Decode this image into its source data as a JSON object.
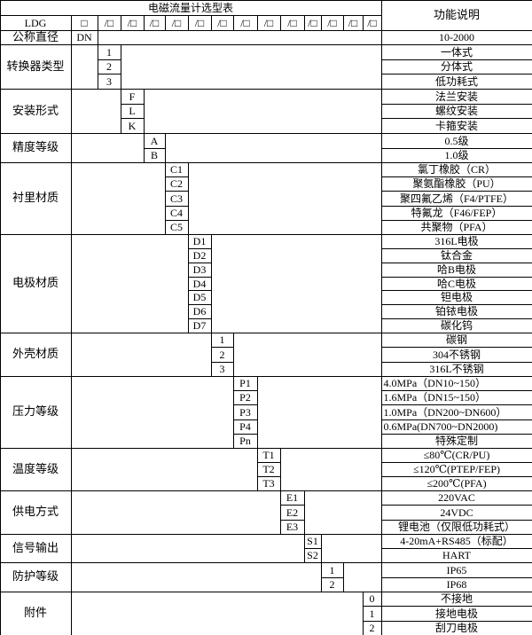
{
  "title": "电磁流量计选型表",
  "function_header": "功能说明",
  "model_row": {
    "label": "LDG",
    "first_box": "□",
    "slot_box": "/□",
    "slot_count": 13
  },
  "diameter_row": {
    "label": "公称直径",
    "code": "DN",
    "function": "10-2000"
  },
  "groups": [
    {
      "label": "转换器类型",
      "items": [
        {
          "code": "1",
          "function": "一体式"
        },
        {
          "code": "2",
          "function": "分体式"
        },
        {
          "code": "3",
          "function": "低功耗式"
        }
      ]
    },
    {
      "label": "安装形式",
      "items": [
        {
          "code": "F",
          "function": "法兰安装"
        },
        {
          "code": "L",
          "function": "螺纹安装"
        },
        {
          "code": "K",
          "function": "卡箍安装"
        }
      ]
    },
    {
      "label": "精度等级",
      "items": [
        {
          "code": "A",
          "function": "0.5级"
        },
        {
          "code": "B",
          "function": "1.0级"
        }
      ]
    },
    {
      "label": "衬里材质",
      "items": [
        {
          "code": "C1",
          "function": "氯丁橡胶（CR）"
        },
        {
          "code": "C2",
          "function": "聚氨酯橡胶（PU）"
        },
        {
          "code": "C3",
          "function": "聚四氟乙烯（F4/PTFE）"
        },
        {
          "code": "C4",
          "function": "特氟龙（F46/FEP）"
        },
        {
          "code": "C5",
          "function": "共聚物（PFA）"
        }
      ]
    },
    {
      "label": "电极材质",
      "items": [
        {
          "code": "D1",
          "function": "316L电极"
        },
        {
          "code": "D2",
          "function": "钛合金"
        },
        {
          "code": "D3",
          "function": "哈B电极"
        },
        {
          "code": "D4",
          "function": "哈C电极"
        },
        {
          "code": "D5",
          "function": "钽电极"
        },
        {
          "code": "D6",
          "function": "铂铱电极"
        },
        {
          "code": "D7",
          "function": "碳化钨"
        }
      ]
    },
    {
      "label": "外壳材质",
      "items": [
        {
          "code": "1",
          "function": "碳钢"
        },
        {
          "code": "2",
          "function": "304不锈钢"
        },
        {
          "code": "3",
          "function": "316L不锈钢"
        }
      ]
    },
    {
      "label": "压力等级",
      "items": [
        {
          "code": "P1",
          "function": "4.0MPa（DN10~150）",
          "align": "left"
        },
        {
          "code": "P2",
          "function": "1.6MPa（DN15~150）",
          "align": "left"
        },
        {
          "code": "P3",
          "function": "1.0MPa（DN200~DN600）",
          "align": "left"
        },
        {
          "code": "P4",
          "function": "0.6MPa(DN700~DN2000)",
          "align": "left"
        },
        {
          "code": "Pn",
          "function": "特殊定制"
        }
      ]
    },
    {
      "label": "温度等级",
      "items": [
        {
          "code": "T1",
          "function": "≤80℃(CR/PU)"
        },
        {
          "code": "T2",
          "function": "≤120℃(PTEP/FEP)"
        },
        {
          "code": "T3",
          "function": "≤200℃(PFA)"
        }
      ]
    },
    {
      "label": "供电方式",
      "items": [
        {
          "code": "E1",
          "function": "220VAC"
        },
        {
          "code": "E2",
          "function": "24VDC"
        },
        {
          "code": "E3",
          "function": "锂电池（仅限低功耗式）"
        }
      ]
    },
    {
      "label": "信号输出",
      "items": [
        {
          "code": "S1",
          "function": "4-20mA+RS485（标配）"
        },
        {
          "code": "S2",
          "function": "HART"
        }
      ]
    },
    {
      "label": "防护等级",
      "items": [
        {
          "code": "1",
          "function": "IP65"
        },
        {
          "code": "2",
          "function": "IP68"
        }
      ]
    },
    {
      "label": "附件",
      "items": [
        {
          "code": "0",
          "function": "不接地"
        },
        {
          "code": "1",
          "function": "接地电极"
        },
        {
          "code": "2",
          "function": "刮刀电极"
        }
      ]
    }
  ]
}
